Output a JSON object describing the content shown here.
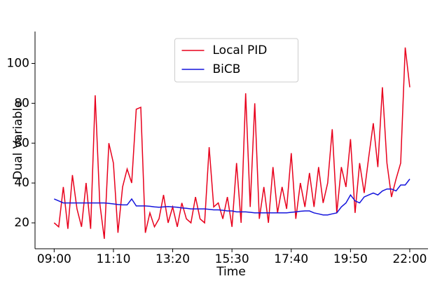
{
  "chart_data": {
    "type": "line",
    "xlabel": "Time",
    "ylabel": "Dual Variable",
    "x": [
      "09:00",
      "09:10",
      "09:20",
      "09:30",
      "09:40",
      "09:50",
      "10:00",
      "10:10",
      "10:20",
      "10:30",
      "10:40",
      "10:50",
      "11:00",
      "11:10",
      "11:20",
      "11:30",
      "11:40",
      "11:50",
      "12:00",
      "12:10",
      "12:20",
      "12:30",
      "12:40",
      "12:50",
      "13:00",
      "13:10",
      "13:20",
      "13:30",
      "13:40",
      "13:50",
      "14:00",
      "14:10",
      "14:20",
      "14:30",
      "14:40",
      "14:50",
      "15:00",
      "15:10",
      "15:20",
      "15:30",
      "15:40",
      "15:50",
      "16:00",
      "16:10",
      "16:20",
      "16:30",
      "16:40",
      "16:50",
      "17:00",
      "17:10",
      "17:20",
      "17:30",
      "17:40",
      "17:50",
      "18:00",
      "18:10",
      "18:20",
      "18:30",
      "18:40",
      "18:50",
      "19:00",
      "19:10",
      "19:20",
      "19:30",
      "19:40",
      "19:50",
      "20:00",
      "20:10",
      "20:20",
      "20:30",
      "20:40",
      "20:50",
      "21:00",
      "21:10",
      "21:20",
      "21:30",
      "21:40",
      "21:50",
      "22:00"
    ],
    "series": [
      {
        "name": "Local PID",
        "color": "#e8001c",
        "values": [
          20,
          18,
          38,
          17,
          44,
          27,
          18,
          40,
          17,
          84,
          30,
          12,
          60,
          50,
          15,
          38,
          47,
          40,
          77,
          78,
          15,
          25,
          18,
          22,
          34,
          20,
          28,
          18,
          30,
          22,
          20,
          33,
          22,
          20,
          58,
          28,
          30,
          22,
          33,
          18,
          50,
          20,
          85,
          28,
          80,
          22,
          38,
          20,
          48,
          25,
          38,
          27,
          55,
          22,
          40,
          28,
          45,
          28,
          48,
          30,
          40,
          67,
          25,
          48,
          38,
          62,
          25,
          50,
          35,
          53,
          70,
          48,
          88,
          50,
          33,
          42,
          50,
          108,
          88
        ]
      },
      {
        "name": "BiCB",
        "color": "#1414dc",
        "values": [
          32,
          31,
          30,
          30,
          30,
          30,
          30,
          30,
          30,
          30,
          30,
          30,
          29.8,
          29.5,
          29.2,
          29,
          29,
          32,
          28.5,
          28.5,
          28.5,
          28.3,
          28,
          27.8,
          28,
          28.2,
          28,
          27.8,
          27.5,
          27.3,
          27,
          27,
          27,
          27,
          26.8,
          26.5,
          26.5,
          26.3,
          26,
          26,
          25.5,
          25.5,
          25.5,
          25.3,
          25,
          25,
          25,
          25,
          25,
          25,
          25,
          25,
          25.3,
          25.5,
          25.8,
          26,
          26,
          25,
          24.5,
          24,
          24,
          24.5,
          25,
          28,
          30,
          34,
          31,
          30,
          33,
          34,
          35,
          34,
          36,
          37,
          37,
          36,
          39,
          39,
          42
        ]
      }
    ],
    "xlim": [
      "08:18",
      "22:40"
    ],
    "xticks": [
      "09:00",
      "11:10",
      "13:20",
      "15:30",
      "17:40",
      "19:50",
      "22:00"
    ],
    "ylim": [
      7,
      116
    ],
    "yticks": [
      20,
      40,
      60,
      80,
      100
    ],
    "legend": "upper center"
  }
}
